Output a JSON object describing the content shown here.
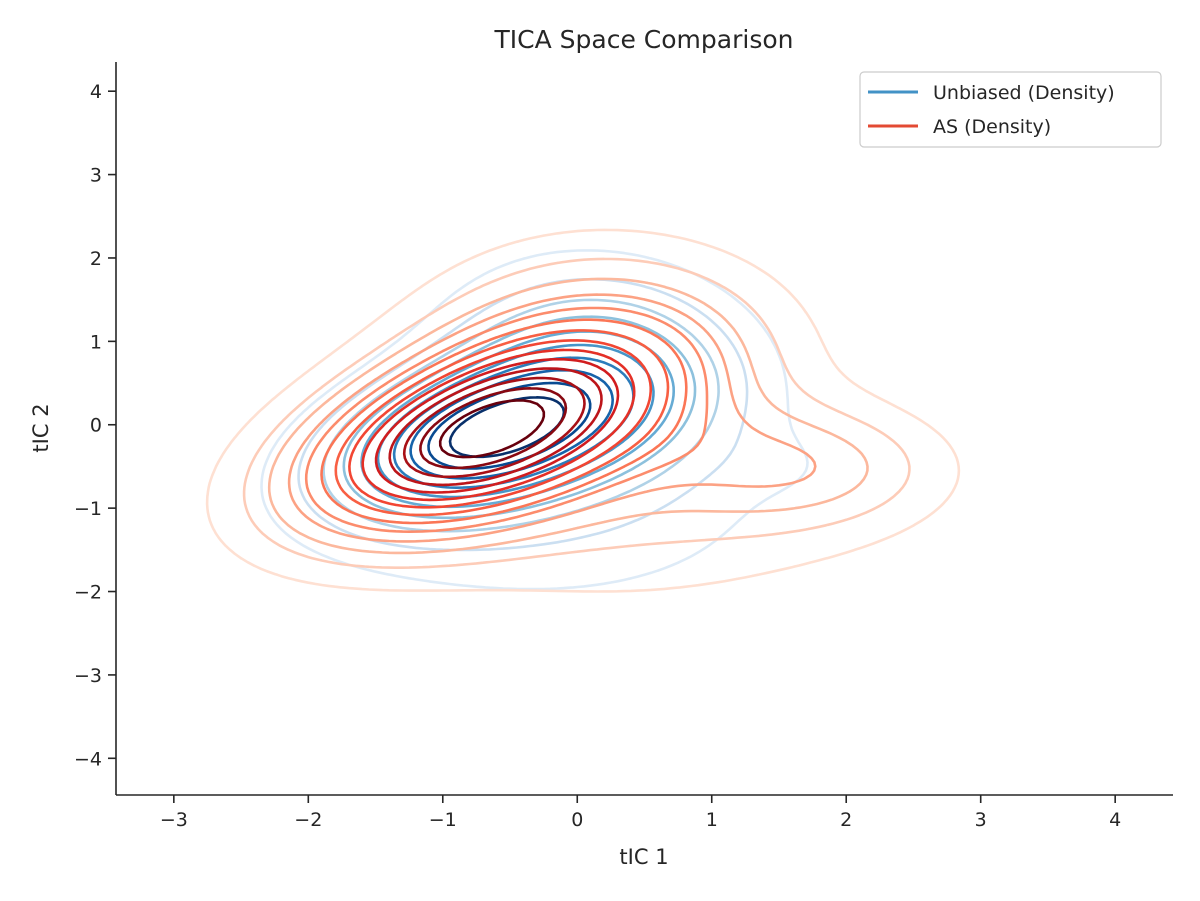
{
  "chart_data": {
    "type": "contour",
    "title": "TICA Space Comparison",
    "xlabel": "tIC 1",
    "ylabel": "tIC 2",
    "xlim": [
      -3.43,
      4.43
    ],
    "ylim": [
      -4.44,
      4.35
    ],
    "xticks": [
      -3,
      -2,
      -1,
      0,
      1,
      2,
      3,
      4
    ],
    "yticks": [
      -4,
      -3,
      -2,
      -1,
      0,
      1,
      2,
      3,
      4
    ],
    "xtick_labels": [
      "−3",
      "−2",
      "−1",
      "0",
      "1",
      "2",
      "3",
      "4"
    ],
    "ytick_labels": [
      "−4",
      "−3",
      "−2",
      "−1",
      "0",
      "1",
      "2",
      "3",
      "4"
    ],
    "grid": false,
    "legend": {
      "position": "top-right"
    },
    "series": [
      {
        "name": "Unbiased (Density)",
        "legend_color": "#4292c6",
        "levels": 10,
        "colors": [
          "#deebf7",
          "#c6dbef",
          "#9ecae1",
          "#6baed6",
          "#4292c6",
          "#2171b5",
          "#08519c",
          "#08306b"
        ],
        "components": [
          {
            "mx": -0.75,
            "my": -0.15,
            "sx": 0.72,
            "sy": 0.62,
            "rho": 0.35,
            "w": 1.0
          },
          {
            "mx": 0.2,
            "my": 0.6,
            "sx": 0.75,
            "sy": 0.85,
            "rho": -0.1,
            "w": 0.55
          },
          {
            "mx": -0.3,
            "my": -1.2,
            "sx": 1.2,
            "sy": 0.8,
            "rho": 0.0,
            "w": 0.18
          },
          {
            "mx": 1.65,
            "my": -0.5,
            "sx": 0.35,
            "sy": 0.3,
            "rho": 0.0,
            "w": 0.05
          }
        ]
      },
      {
        "name": "AS (Density)",
        "legend_color": "#e34a33",
        "levels": 14,
        "colors": [
          "#fee0d2",
          "#fcbba1",
          "#fc9272",
          "#fb6a4a",
          "#ef3b2c",
          "#cb181d",
          "#a50f15",
          "#67000d"
        ],
        "components": [
          {
            "mx": -0.8,
            "my": -0.15,
            "sx": 0.85,
            "sy": 0.75,
            "rho": 0.45,
            "w": 1.0
          },
          {
            "mx": 0.2,
            "my": 0.8,
            "sx": 0.9,
            "sy": 0.9,
            "rho": 0.0,
            "w": 0.35
          },
          {
            "mx": 1.7,
            "my": -0.5,
            "sx": 0.7,
            "sy": 0.5,
            "rho": 0.0,
            "w": 0.22
          },
          {
            "mx": 0.3,
            "my": -1.0,
            "sx": 1.4,
            "sy": 0.9,
            "rho": 0.0,
            "w": 0.15
          }
        ]
      }
    ]
  }
}
